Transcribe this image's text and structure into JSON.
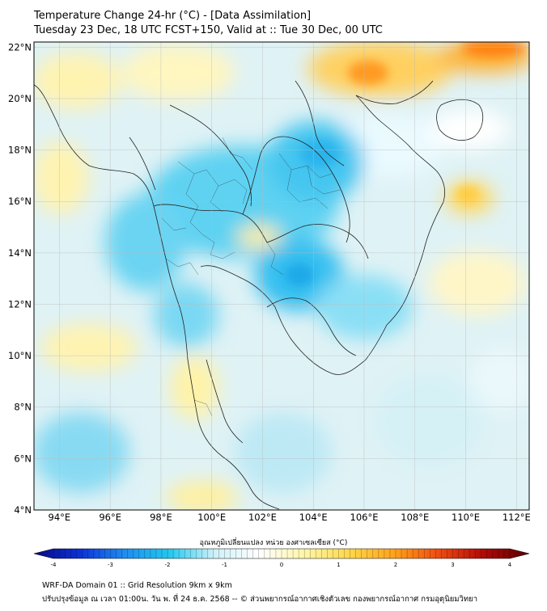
{
  "header": {
    "title_line1": "Temperature Change 24-hr (°C) - [Data Assimilation]",
    "title_line2": "Tuesday 23 Dec, 18 UTC FCST+150, Valid at :: Tue 30 Dec, 00 UTC"
  },
  "map": {
    "lon_range": [
      93,
      112.5
    ],
    "lat_range": [
      4,
      22.2
    ],
    "lat_labels": [
      "4°N",
      "6°N",
      "8°N",
      "10°N",
      "12°N",
      "14°N",
      "16°N",
      "18°N",
      "20°N",
      "22°N"
    ],
    "lat_values": [
      4,
      6,
      8,
      10,
      12,
      14,
      16,
      18,
      20,
      22
    ],
    "lon_labels": [
      "94°E",
      "96°E",
      "98°E",
      "100°E",
      "102°E",
      "104°E",
      "106°E",
      "108°E",
      "110°E",
      "112°E"
    ],
    "lon_values": [
      94,
      96,
      98,
      100,
      102,
      104,
      106,
      108,
      110,
      112
    ],
    "colors": {
      "ocean_base": "#dff2f5",
      "cold": "#1fc0f0",
      "warm": "#ffe680",
      "hot": "#ff8a1a",
      "border": "#222222"
    }
  },
  "colorbar": {
    "title": "อุณหภูมิเปลี่ยนแปลง หน่วย องศาเซลเซียส (°C)",
    "range": [
      -4,
      4
    ],
    "tick_labels": [
      "-4",
      "-3",
      "-2",
      "-1",
      "0",
      "1",
      "2",
      "3",
      "4"
    ],
    "tick_values": [
      -4,
      -3,
      -2,
      -1,
      0,
      1,
      2,
      3,
      4
    ],
    "colors": [
      "#0a0a80",
      "#0b2fd8",
      "#1e8cf0",
      "#22c8f0",
      "#cdf1f8",
      "#ffffff",
      "#fff6a8",
      "#ffd84a",
      "#ffa21a",
      "#ef4a10",
      "#b00808",
      "#5a0000"
    ]
  },
  "footer": {
    "line1": "WRF-DA Domain 01 :: Grid Resolution 9km x 9km",
    "line2": "ปรับปรุงข้อมูล ณ เวลา 01:00น. วัน พ. ที่ 24 ธ.ค. 2568 -- © ส่วนพยากรณ์อากาศเชิงตัวเลข กองพยากรณ์อากาศ กรมอุตุนิยมวิทยา"
  }
}
